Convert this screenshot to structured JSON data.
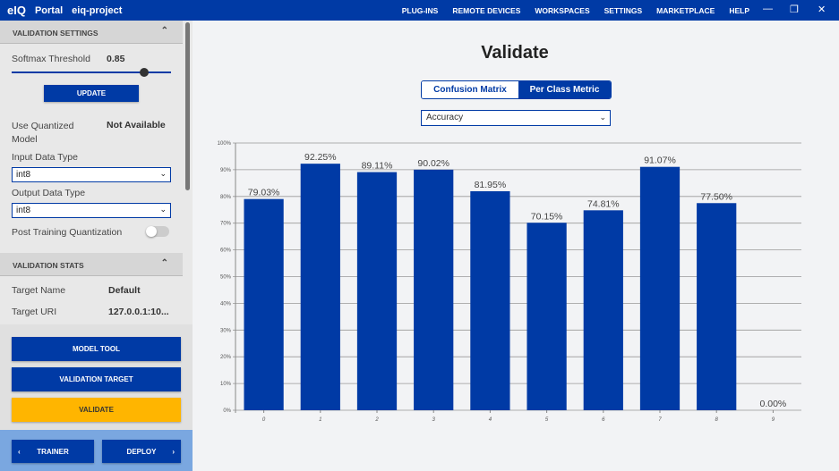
{
  "topbar": {
    "logo": "eIQ",
    "portal": "Portal",
    "project": "eiq-project",
    "nav": [
      "PLUG-INS",
      "REMOTE DEVICES",
      "WORKSPACES",
      "SETTINGS",
      "MARKETPLACE",
      "HELP"
    ]
  },
  "sidebar": {
    "settings_header": "VALIDATION SETTINGS",
    "softmax_label": "Softmax Threshold",
    "softmax_value": "0.85",
    "softmax_fraction": 0.85,
    "update": "UPDATE",
    "quantized_label": "Use Quantized Model",
    "quantized_value": "Not Available",
    "input_label": "Input Data Type",
    "input_value": "int8",
    "output_label": "Output Data Type",
    "output_value": "int8",
    "ptq_label": "Post Training Quantization",
    "ptq_on": false,
    "stats_header": "VALIDATION STATS",
    "target_name_label": "Target Name",
    "target_name_value": "Default",
    "target_uri_label": "Target URI",
    "target_uri_value": "127.0.0.1:10...",
    "model_tool": "MODEL TOOL",
    "validation_target": "VALIDATION TARGET",
    "validate": "VALIDATE",
    "trainer": "TRAINER",
    "deploy": "DEPLOY"
  },
  "main": {
    "title": "Validate",
    "tabs": [
      "Confusion Matrix",
      "Per Class Metric"
    ],
    "active_tab": 1,
    "metric": "Accuracy"
  },
  "colors": {
    "brand": "#003aa5",
    "validate": "#ffb500"
  },
  "chart_data": {
    "type": "bar",
    "categories": [
      "0",
      "1",
      "2",
      "3",
      "4",
      "5",
      "6",
      "7",
      "8",
      "9"
    ],
    "values": [
      79.03,
      92.25,
      89.11,
      90.02,
      81.95,
      70.15,
      74.81,
      91.07,
      77.5,
      0.0
    ],
    "labels": [
      "79.03%",
      "92.25%",
      "89.11%",
      "90.02%",
      "81.95%",
      "70.15%",
      "74.81%",
      "91.07%",
      "77.50%",
      "0.00%"
    ],
    "yticks": [
      "0%",
      "10%",
      "20%",
      "30%",
      "40%",
      "50%",
      "60%",
      "70%",
      "80%",
      "90%",
      "100%"
    ],
    "ylim": [
      0,
      100
    ],
    "grid": true
  }
}
